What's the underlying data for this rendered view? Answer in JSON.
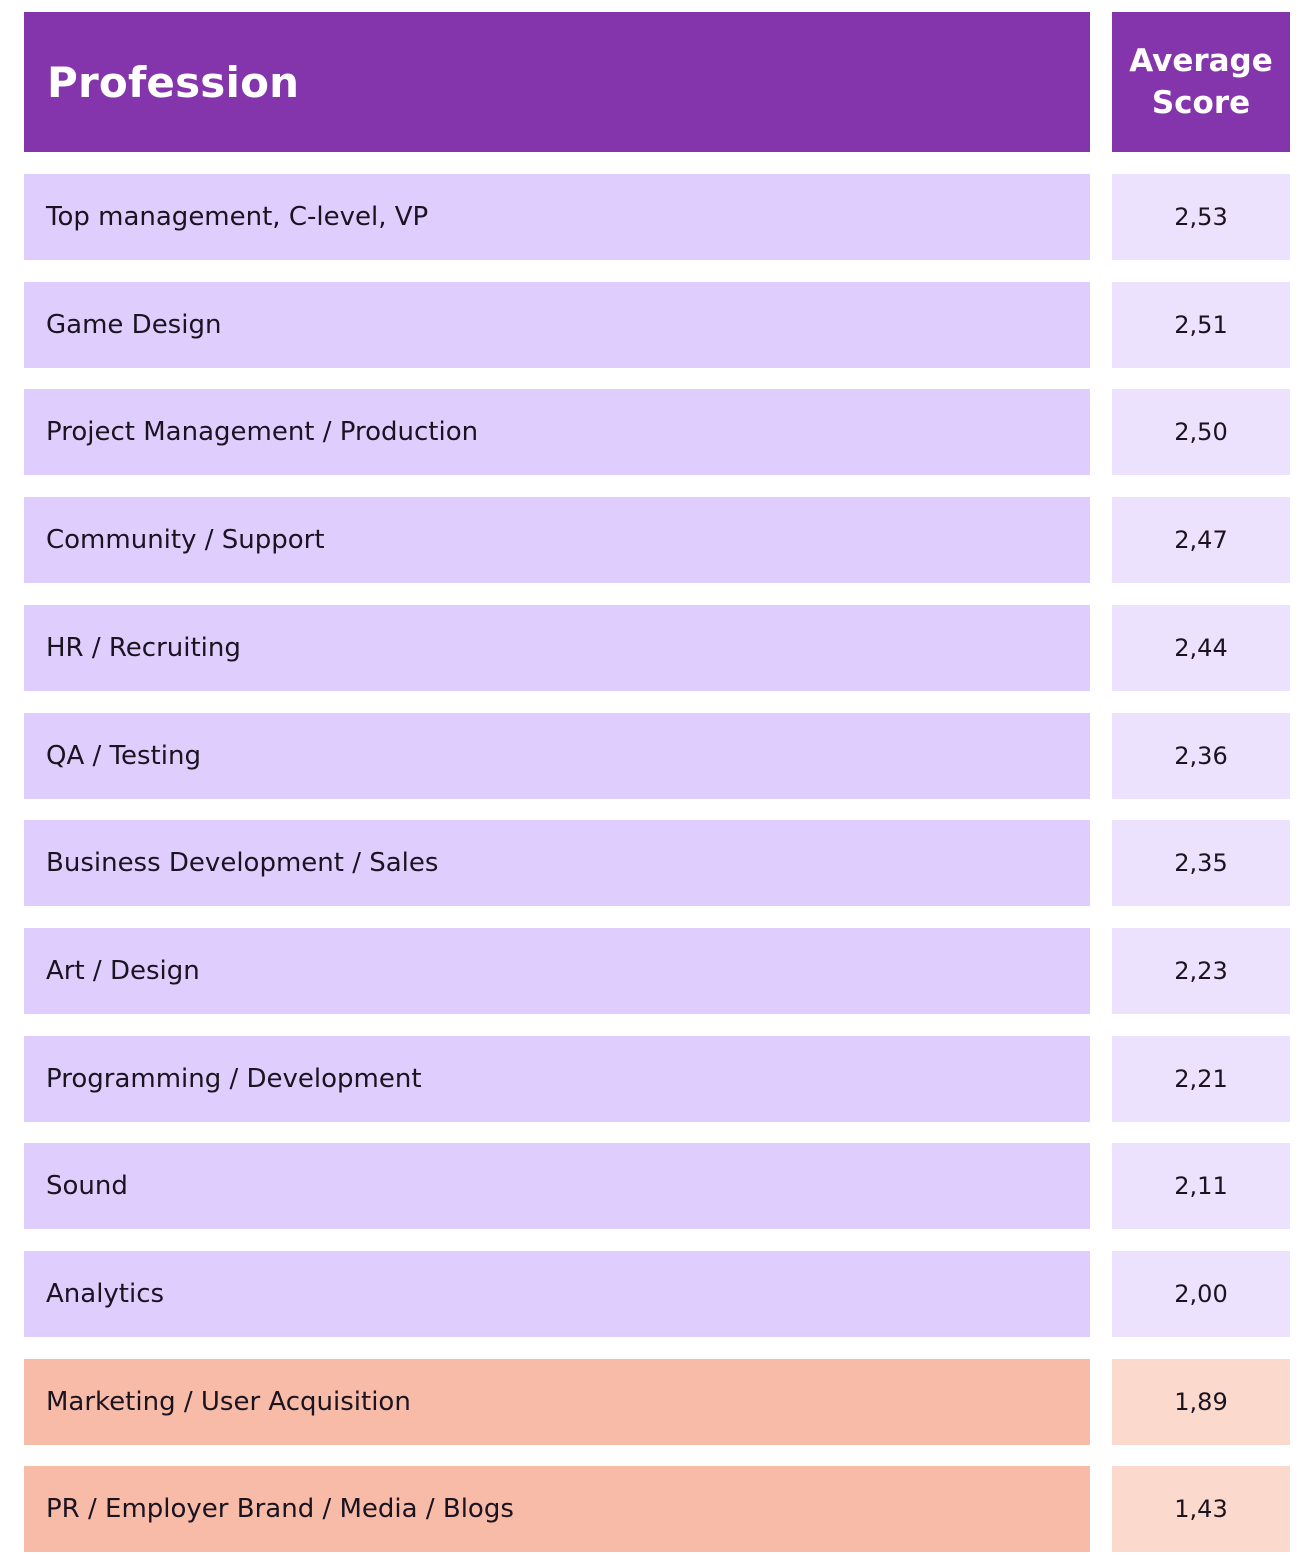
{
  "header": {
    "profession": "Profession",
    "score": "Average Score"
  },
  "colors": {
    "header": "#8535ab",
    "row_purple": "#dfcefd",
    "score_purple": "#ece2fd",
    "row_salmon": "#f7bba8",
    "score_salmon": "#fcd9cd"
  },
  "chart_data": {
    "type": "table",
    "columns": [
      "Profession",
      "Average Score"
    ],
    "rows": [
      {
        "profession": "Top management, C-level, VP",
        "score": "2,53",
        "group": "purple"
      },
      {
        "profession": "Game Design",
        "score": "2,51",
        "group": "purple"
      },
      {
        "profession": "Project Management / Production",
        "score": "2,50",
        "group": "purple"
      },
      {
        "profession": "Community / Support",
        "score": "2,47",
        "group": "purple"
      },
      {
        "profession": "HR / Recruiting",
        "score": "2,44",
        "group": "purple"
      },
      {
        "profession": "QA / Testing",
        "score": "2,36",
        "group": "purple"
      },
      {
        "profession": "Business Development / Sales",
        "score": "2,35",
        "group": "purple"
      },
      {
        "profession": "Art / Design",
        "score": "2,23",
        "group": "purple"
      },
      {
        "profession": "Programming / Development",
        "score": "2,21",
        "group": "purple"
      },
      {
        "profession": "Sound",
        "score": "2,11",
        "group": "purple"
      },
      {
        "profession": "Analytics",
        "score": "2,00",
        "group": "purple"
      },
      {
        "profession": "Marketing / User Acquisition",
        "score": "1,89",
        "group": "salmon"
      },
      {
        "profession": "PR / Employer Brand / Media / Blogs",
        "score": "1,43",
        "group": "salmon"
      }
    ]
  }
}
